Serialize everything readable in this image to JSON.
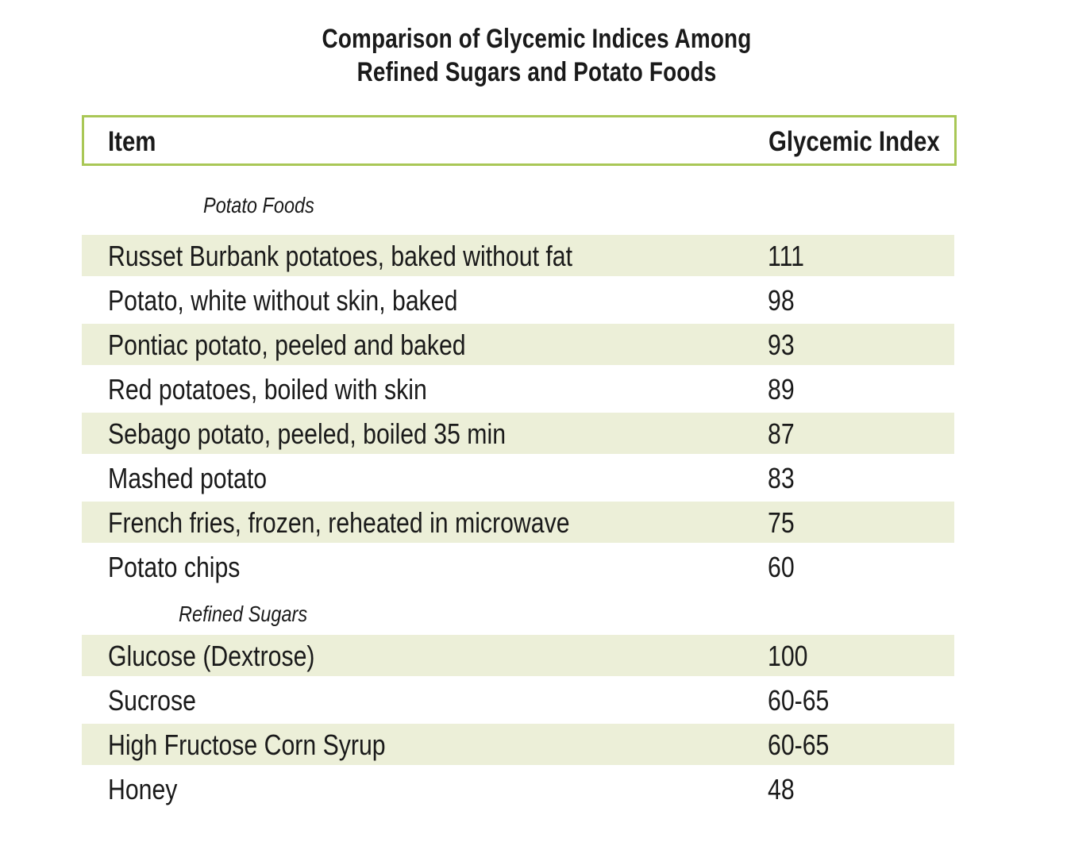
{
  "chart_data": {
    "type": "table",
    "title_lines": [
      "Comparison of Glycemic Indices Among",
      "Refined Sugars and Potato Foods"
    ],
    "columns": [
      "Item",
      "Glycemic Index"
    ],
    "sections": [
      {
        "name": "Potato Foods",
        "rows": [
          {
            "item": "Russet Burbank potatoes, baked without fat",
            "value": "111"
          },
          {
            "item": "Potato, white without skin, baked",
            "value": "98"
          },
          {
            "item": "Pontiac potato, peeled and baked",
            "value": "93"
          },
          {
            "item": "Red potatoes, boiled with skin",
            "value": "89"
          },
          {
            "item": "Sebago potato, peeled, boiled 35 min",
            "value": "87"
          },
          {
            "item": "Mashed potato",
            "value": "83"
          },
          {
            "item": "French fries, frozen, reheated in microwave",
            "value": "75"
          },
          {
            "item": "Potato chips",
            "value": "60"
          }
        ]
      },
      {
        "name": "Refined Sugars",
        "rows": [
          {
            "item": "Glucose (Dextrose)",
            "value": "100"
          },
          {
            "item": "Sucrose",
            "value": "60-65"
          },
          {
            "item": "High Fructose Corn Syrup",
            "value": "60-65"
          },
          {
            "item": "Honey",
            "value": "48"
          }
        ]
      }
    ]
  },
  "colors": {
    "header_border": "#a9c756",
    "row_shade": "#ecefd8",
    "text": "#1a1a1a"
  }
}
